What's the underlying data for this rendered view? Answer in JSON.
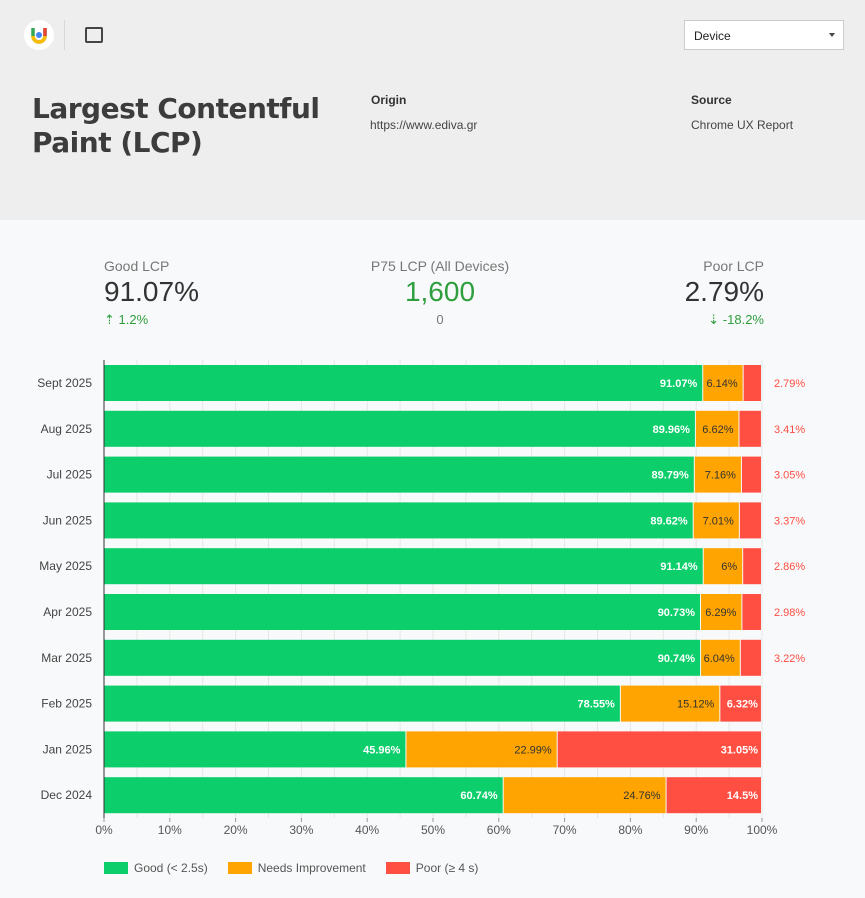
{
  "header": {
    "title": "Largest Contentful Paint (LCP)",
    "origin_label": "Origin",
    "origin_value": "https://www.ediva.gr",
    "source_label": "Source",
    "source_value": "Chrome UX Report",
    "device_select": "Device",
    "icons": [
      "looker-studio-logo-icon",
      "fullscreen-icon"
    ]
  },
  "kpis": [
    {
      "label": "Good LCP",
      "value": "91.07%",
      "delta": "1.2%",
      "delta_icon": "arrow-up-icon"
    },
    {
      "label": "P75 LCP (All Devices)",
      "value": "1,600",
      "delta": "0"
    },
    {
      "label": "Poor LCP",
      "value": "2.79%",
      "delta": "-18.2%",
      "delta_icon": "arrow-down-icon"
    }
  ],
  "colors": {
    "good": "#0cce6b",
    "needs": "#ffa400",
    "poor": "#ff4e42",
    "kpi_green": "#2e9e3e"
  },
  "chart_data": {
    "type": "bar",
    "orientation": "horizontal",
    "stacked": true,
    "categories": [
      "Sept 2025",
      "Aug 2025",
      "Jul 2025",
      "Jun 2025",
      "May 2025",
      "Apr 2025",
      "Mar 2025",
      "Feb 2025",
      "Jan 2025",
      "Dec 2024"
    ],
    "series": [
      {
        "name": "Good (< 2.5s)",
        "values": [
          91.07,
          89.96,
          89.79,
          89.62,
          91.14,
          90.73,
          90.74,
          78.55,
          45.96,
          60.74
        ],
        "labels": [
          "91.07%",
          "89.96%",
          "89.79%",
          "89.62%",
          "91.14%",
          "90.73%",
          "90.74%",
          "78.55%",
          "45.96%",
          "60.74%"
        ]
      },
      {
        "name": "Needs Improvement",
        "values": [
          6.14,
          6.62,
          7.16,
          7.01,
          6,
          6.29,
          6.04,
          15.12,
          22.99,
          24.76
        ],
        "labels": [
          "6.14%",
          "6.62%",
          "7.16%",
          "7.01%",
          "6%",
          "6.29%",
          "6.04%",
          "15.12%",
          "22.99%",
          "24.76%"
        ]
      },
      {
        "name": "Poor (≥ 4 s)",
        "values": [
          2.79,
          3.41,
          3.05,
          3.37,
          2.86,
          2.98,
          3.22,
          6.32,
          31.05,
          14.5
        ],
        "labels": [
          "2.79%",
          "3.41%",
          "3.05%",
          "3.37%",
          "2.86%",
          "2.98%",
          "3.22%",
          "6.32%",
          "31.05%",
          "14.5%"
        ]
      }
    ],
    "xlim": [
      0,
      100
    ],
    "xticks": [
      "0%",
      "10%",
      "20%",
      "30%",
      "40%",
      "50%",
      "60%",
      "70%",
      "80%",
      "90%",
      "100%"
    ],
    "grid": true,
    "legend": "bottom-left"
  }
}
